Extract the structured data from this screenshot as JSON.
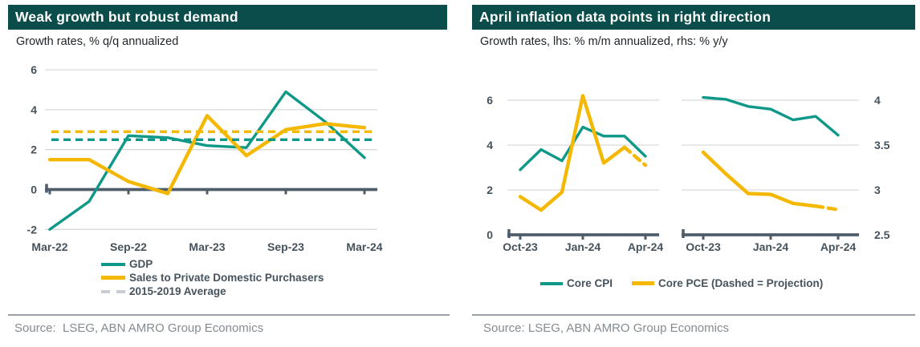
{
  "palette": {
    "teal": "#0E9887",
    "yellow": "#F5B800",
    "header_bg": "#0B4D4B",
    "header_text": "#FFFFFF",
    "axis": "#4E5D69",
    "grid": "#D9D9D9",
    "tick_text": "#46535D",
    "body_text": "#20262B",
    "source_text": "#848B91",
    "divider": "#98A0A6",
    "legend_dash_gray": "#C9CDD1"
  },
  "chart_data": [
    {
      "type": "line",
      "title": "Weak growth but robust demand",
      "subtitle": "Growth rates, % q/q annualized",
      "source": "Source:  LSEG, ABN AMRO Group Economics",
      "categories": [
        "Mar-22",
        "Jun-22",
        "Sep-22",
        "Dec-22",
        "Mar-23",
        "Jun-23",
        "Sep-23",
        "Dec-23",
        "Mar-24"
      ],
      "x_tick_labels": [
        "Mar-22",
        "Sep-22",
        "Mar-23",
        "Sep-23",
        "Mar-24"
      ],
      "y_ticks": [
        6,
        4,
        2,
        0,
        -2
      ],
      "ylim": [
        -2.9,
        6.3
      ],
      "x_axis_at": 0,
      "grid": "horizontal",
      "legend_position": "bottom-left",
      "series": [
        {
          "key": "gdp",
          "name": "GDP",
          "color": "teal",
          "style": "solid",
          "values": [
            -2.0,
            -0.6,
            2.7,
            2.6,
            2.2,
            2.1,
            4.9,
            3.4,
            1.6
          ]
        },
        {
          "key": "sales",
          "name": "Sales to Private Domestic Purchasers",
          "color": "yellow",
          "style": "solid",
          "values": [
            1.5,
            1.5,
            0.4,
            -0.2,
            3.7,
            1.7,
            3.0,
            3.3,
            3.1
          ]
        }
      ],
      "hlines": [
        {
          "key": "avg-sales",
          "name": "2015-2019 Average (Sales to Private Domestic Purchasers)",
          "color": "yellow",
          "style": "dashed",
          "value": 2.9
        },
        {
          "key": "avg-gdp",
          "name": "2015-2019 Average (GDP)",
          "color": "teal",
          "style": "dashed",
          "value": 2.5
        }
      ],
      "legend": [
        {
          "label": "GDP",
          "swatch": "teal-solid"
        },
        {
          "label": "Sales to Private Domestic Purchasers",
          "swatch": "yellow-solid"
        },
        {
          "label": "2015-2019 Average",
          "swatch": "gray-dashed"
        }
      ]
    },
    {
      "type": "line",
      "title": "April inflation data points in right direction",
      "subtitle": "Growth rates, lhs: % m/m annualized, rhs: % y/y",
      "source": "Source: LSEG, ABN AMRO Group Economics",
      "legend_position": "bottom-center",
      "legend": [
        {
          "label": "Core CPI",
          "swatch": "teal-solid"
        },
        {
          "label": "Core PCE (Dashed = Projection)",
          "swatch": "yellow-solid"
        }
      ],
      "panels": [
        {
          "name": "lhs: % m/m annualized",
          "categories": [
            "Oct-23",
            "Nov-23",
            "Dec-23",
            "Jan-24",
            "Feb-24",
            "Mar-24",
            "Apr-24"
          ],
          "x_tick_labels": [
            "Oct-23",
            "Jan-24",
            "Apr-24"
          ],
          "y_ticks": [
            6,
            4,
            2,
            0
          ],
          "ylim": [
            0,
            6.5
          ],
          "x_axis_at": 0,
          "y_axis_side": "left",
          "series": [
            {
              "key": "core-cpi-mm",
              "name": "Core CPI",
              "color": "teal",
              "style": "solid",
              "values": [
                2.9,
                3.8,
                3.3,
                4.8,
                4.4,
                4.4,
                3.5
              ]
            },
            {
              "key": "core-pce-mm",
              "name": "Core PCE",
              "color": "yellow",
              "style": "solid",
              "projection_from_index": 5,
              "values": [
                1.7,
                1.1,
                1.9,
                6.2,
                3.2,
                3.9,
                3.1
              ]
            }
          ]
        },
        {
          "name": "rhs: % y/y",
          "categories": [
            "Oct-23",
            "Nov-23",
            "Dec-23",
            "Jan-24",
            "Feb-24",
            "Mar-24",
            "Apr-24"
          ],
          "x_tick_labels": [
            "Oct-23",
            "Jan-24",
            "Apr-24"
          ],
          "y_ticks": [
            4,
            3.5,
            3,
            2.5
          ],
          "ylim": [
            2.5,
            4.2
          ],
          "x_axis_at": 2.5,
          "y_axis_side": "right",
          "series": [
            {
              "key": "core-cpi-yy",
              "name": "Core CPI",
              "color": "teal",
              "style": "solid",
              "values": [
                4.03,
                4.01,
                3.93,
                3.9,
                3.78,
                3.82,
                3.61
              ]
            },
            {
              "key": "core-pce-yy",
              "name": "Core PCE",
              "color": "yellow",
              "style": "solid",
              "projection_from_index": 5,
              "values": [
                3.42,
                3.18,
                2.96,
                2.95,
                2.85,
                2.82,
                2.78
              ]
            }
          ]
        }
      ]
    }
  ]
}
